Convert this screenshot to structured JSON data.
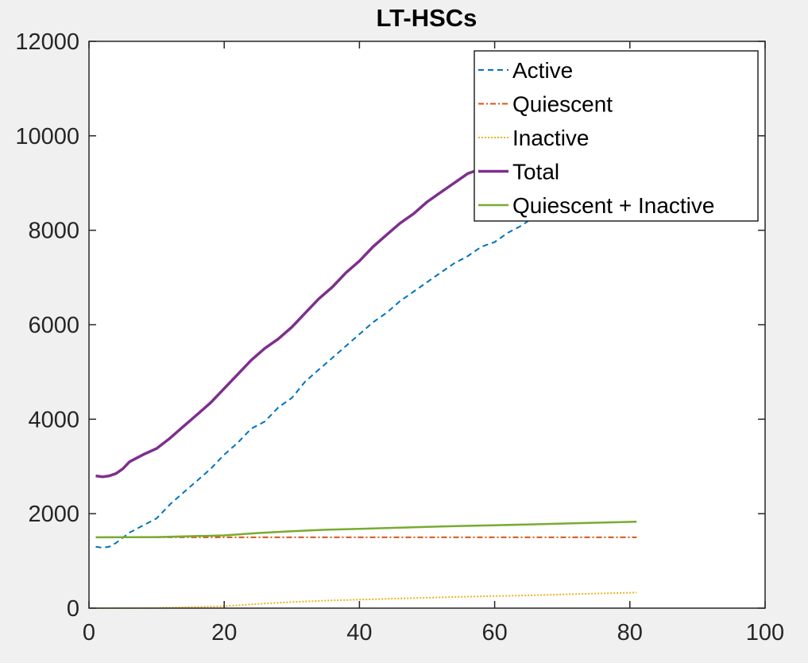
{
  "chart_data": {
    "type": "line",
    "title": "LT-HSCs",
    "xlabel": "",
    "ylabel": "",
    "xlim": [
      0,
      100
    ],
    "ylim": [
      0,
      12000
    ],
    "xticks": [
      0,
      20,
      40,
      60,
      80,
      100
    ],
    "yticks": [
      0,
      2000,
      4000,
      6000,
      8000,
      10000,
      12000
    ],
    "grid": false,
    "legend_position": "top-right",
    "series": [
      {
        "name": "Active",
        "color": "#0072BD",
        "style": "dashed",
        "x": [
          1,
          2,
          3,
          4,
          6,
          8,
          10,
          12,
          14,
          16,
          18,
          20,
          22,
          24,
          26,
          28,
          30,
          32,
          34,
          36,
          38,
          40,
          42,
          44,
          46,
          48,
          50,
          52,
          54,
          56,
          58,
          60,
          62,
          64,
          66
        ],
        "y": [
          1300,
          1280,
          1300,
          1380,
          1600,
          1750,
          1900,
          2200,
          2450,
          2700,
          2950,
          3250,
          3500,
          3800,
          3950,
          4250,
          4450,
          4800,
          5050,
          5300,
          5550,
          5800,
          6050,
          6250,
          6500,
          6700,
          6900,
          7100,
          7300,
          7450,
          7650,
          7750,
          7950,
          8100,
          8300
        ]
      },
      {
        "name": "Quiescent",
        "color": "#D95319",
        "style": "dashdot",
        "x": [
          1,
          81
        ],
        "y": [
          1500,
          1500
        ]
      },
      {
        "name": "Inactive",
        "color": "#EDB120",
        "style": "dotted",
        "x": [
          1,
          10,
          20,
          25,
          30,
          35,
          40,
          45,
          50,
          55,
          60,
          65,
          70,
          75,
          81
        ],
        "y": [
          0,
          5,
          40,
          90,
          130,
          160,
          180,
          200,
          220,
          240,
          255,
          270,
          290,
          310,
          330
        ]
      },
      {
        "name": "Total",
        "color": "#7E2F8E",
        "style": "solid",
        "x": [
          1,
          2,
          3,
          4,
          5,
          6,
          8,
          10,
          12,
          14,
          16,
          18,
          20,
          22,
          24,
          26,
          28,
          30,
          32,
          34,
          36,
          38,
          40,
          42,
          44,
          46,
          48,
          50,
          52,
          54,
          56,
          58
        ],
        "y": [
          2800,
          2780,
          2800,
          2850,
          2950,
          3100,
          3250,
          3380,
          3600,
          3850,
          4100,
          4350,
          4650,
          4950,
          5250,
          5500,
          5700,
          5950,
          6250,
          6550,
          6800,
          7100,
          7350,
          7650,
          7900,
          8150,
          8350,
          8600,
          8800,
          9000,
          9200,
          9300
        ]
      },
      {
        "name": "Quiescent + Inactive",
        "color": "#77AC30",
        "style": "solid",
        "x": [
          1,
          10,
          20,
          25,
          30,
          35,
          40,
          45,
          50,
          55,
          60,
          65,
          70,
          75,
          81
        ],
        "y": [
          1500,
          1505,
          1540,
          1590,
          1630,
          1660,
          1680,
          1700,
          1720,
          1740,
          1755,
          1770,
          1790,
          1810,
          1830
        ]
      }
    ]
  }
}
